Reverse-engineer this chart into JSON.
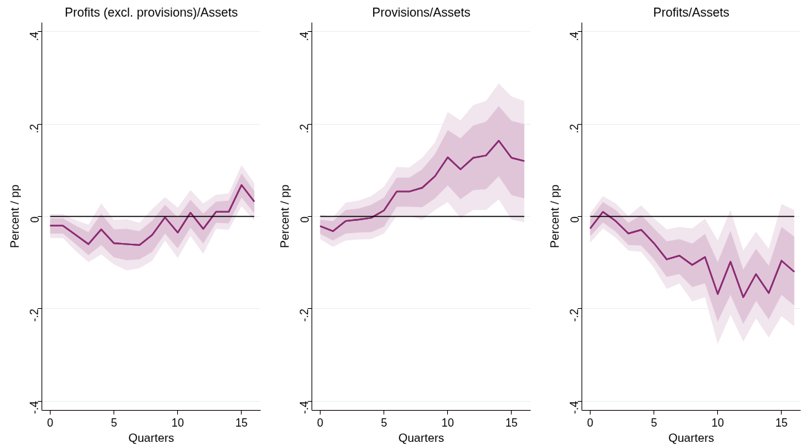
{
  "chart_data": [
    {
      "type": "line",
      "title": "Profits (excl. provisions)/Assets",
      "xlabel": "Quarters",
      "ylabel": "Percent / pp",
      "x": [
        0,
        1,
        2,
        3,
        4,
        5,
        6,
        7,
        8,
        9,
        10,
        11,
        12,
        13,
        14,
        15,
        16
      ],
      "xlim": [
        -0.65,
        16.5
      ],
      "xticks": [
        0,
        5,
        10,
        15
      ],
      "ylim": [
        -0.42,
        0.42
      ],
      "yticks": [
        {
          "value": -0.4,
          "label": "-.4"
        },
        {
          "value": -0.2,
          "label": "-.2"
        },
        {
          "value": 0,
          "label": "0"
        },
        {
          "value": 0.2,
          "label": ".2"
        },
        {
          "value": 0.4,
          "label": ".4"
        }
      ],
      "grid": "y",
      "ref_lines": [
        {
          "axis": "y",
          "value": 0,
          "color": "#000000"
        }
      ],
      "series": [
        {
          "color": "#8b2a72",
          "values": [
            -0.02,
            -0.02,
            -0.04,
            -0.06,
            -0.028,
            -0.058,
            -0.06,
            -0.062,
            -0.04,
            -0.002,
            -0.035,
            0.008,
            -0.027,
            0.01,
            0.01,
            0.068,
            0.032
          ],
          "lower": [
            -0.047,
            -0.047,
            -0.075,
            -0.099,
            -0.082,
            -0.104,
            -0.117,
            -0.112,
            -0.096,
            -0.052,
            -0.09,
            -0.042,
            -0.081,
            -0.027,
            -0.029,
            0.022,
            -0.009
          ],
          "upper": [
            0.005,
            0.005,
            -0.008,
            -0.018,
            0.028,
            -0.008,
            -0.006,
            -0.014,
            0.016,
            0.042,
            0.019,
            0.057,
            0.028,
            0.047,
            0.05,
            0.111,
            0.072
          ]
        },
        {
          "color": "#8b2a72",
          "values": [
            -0.02,
            -0.02,
            -0.04,
            -0.06,
            -0.028,
            -0.058,
            -0.06,
            -0.062,
            -0.04,
            -0.002,
            -0.035,
            0.008,
            -0.027,
            0.01,
            0.01,
            0.068,
            0.032
          ],
          "lower": [
            -0.037,
            -0.037,
            -0.06,
            -0.084,
            -0.062,
            -0.089,
            -0.095,
            -0.093,
            -0.077,
            -0.037,
            -0.069,
            -0.024,
            -0.059,
            -0.014,
            -0.015,
            0.041,
            0.007
          ],
          "upper": [
            -0.004,
            -0.004,
            -0.02,
            -0.034,
            0.006,
            -0.028,
            -0.027,
            -0.032,
            -0.009,
            0.025,
            -0.002,
            0.036,
            0.006,
            0.032,
            0.034,
            0.093,
            0.055
          ]
        }
      ]
    },
    {
      "type": "line",
      "title": "Provisions/Assets",
      "xlabel": "Quarters",
      "ylabel": "Percent / pp",
      "x": [
        0,
        1,
        2,
        3,
        4,
        5,
        6,
        7,
        8,
        9,
        10,
        11,
        12,
        13,
        14,
        15,
        16
      ],
      "xlim": [
        -0.65,
        16.5
      ],
      "xticks": [
        0,
        5,
        10,
        15
      ],
      "ylim": [
        -0.42,
        0.42
      ],
      "yticks": [
        {
          "value": -0.4,
          "label": "-.4"
        },
        {
          "value": -0.2,
          "label": "-.2"
        },
        {
          "value": 0,
          "label": "0"
        },
        {
          "value": 0.2,
          "label": ".2"
        },
        {
          "value": 0.4,
          "label": ".4"
        }
      ],
      "grid": "y",
      "ref_lines": [
        {
          "axis": "y",
          "value": 0,
          "color": "#000000"
        }
      ],
      "series": [
        {
          "color": "#8b2a72",
          "values": [
            -0.021,
            -0.032,
            -0.01,
            -0.007,
            -0.003,
            0.013,
            0.054,
            0.054,
            0.062,
            0.087,
            0.128,
            0.102,
            0.127,
            0.132,
            0.164,
            0.127,
            0.12
          ],
          "lower": [
            -0.049,
            -0.066,
            -0.052,
            -0.05,
            -0.049,
            -0.037,
            0.001,
            0.001,
            -0.007,
            0.014,
            0.031,
            -0.003,
            0.014,
            0.014,
            0.037,
            -0.007,
            -0.012
          ],
          "upper": [
            0.004,
            -0.002,
            0.03,
            0.034,
            0.044,
            0.064,
            0.107,
            0.106,
            0.127,
            0.16,
            0.226,
            0.208,
            0.241,
            0.25,
            0.288,
            0.26,
            0.25
          ]
        },
        {
          "color": "#8b2a72",
          "values": [
            -0.021,
            -0.032,
            -0.01,
            -0.007,
            -0.003,
            0.013,
            0.054,
            0.054,
            0.062,
            0.087,
            0.128,
            0.102,
            0.127,
            0.132,
            0.164,
            0.127,
            0.12
          ],
          "lower": [
            -0.038,
            -0.052,
            -0.037,
            -0.035,
            -0.034,
            -0.022,
            0.021,
            0.021,
            0.02,
            0.039,
            0.067,
            0.037,
            0.057,
            0.059,
            0.087,
            0.046,
            0.039
          ],
          "upper": [
            -0.007,
            -0.01,
            0.014,
            0.017,
            0.025,
            0.041,
            0.084,
            0.084,
            0.102,
            0.135,
            0.187,
            0.169,
            0.197,
            0.205,
            0.239,
            0.207,
            0.2
          ]
        }
      ]
    },
    {
      "type": "line",
      "title": "Profits/Assets",
      "xlabel": "Quarters",
      "ylabel": "Percent / pp",
      "x": [
        0,
        1,
        2,
        3,
        4,
        5,
        6,
        7,
        8,
        9,
        10,
        11,
        12,
        13,
        14,
        15,
        16
      ],
      "xlim": [
        -0.65,
        16.5
      ],
      "xticks": [
        0,
        5,
        10,
        15
      ],
      "ylim": [
        -0.42,
        0.42
      ],
      "yticks": [
        {
          "value": -0.4,
          "label": "-.4"
        },
        {
          "value": -0.2,
          "label": "-.2"
        },
        {
          "value": 0,
          "label": "0"
        },
        {
          "value": 0.2,
          "label": ".2"
        },
        {
          "value": 0.4,
          "label": ".4"
        }
      ],
      "grid": "y",
      "ref_lines": [
        {
          "axis": "y",
          "value": 0,
          "color": "#000000"
        }
      ],
      "series": [
        {
          "color": "#8b2a72",
          "values": [
            -0.026,
            0.01,
            -0.01,
            -0.037,
            -0.029,
            -0.058,
            -0.093,
            -0.085,
            -0.105,
            -0.088,
            -0.168,
            -0.098,
            -0.175,
            -0.125,
            -0.166,
            -0.096,
            -0.12
          ],
          "lower": [
            -0.057,
            -0.026,
            -0.046,
            -0.074,
            -0.077,
            -0.111,
            -0.157,
            -0.145,
            -0.184,
            -0.175,
            -0.276,
            -0.213,
            -0.271,
            -0.221,
            -0.262,
            -0.216,
            -0.238
          ],
          "upper": [
            0.007,
            0.044,
            0.028,
            0.001,
            0.024,
            -0.004,
            -0.028,
            -0.023,
            -0.026,
            -0.005,
            -0.052,
            0.014,
            -0.074,
            -0.033,
            -0.07,
            0.027,
            0.014
          ]
        },
        {
          "color": "#8b2a72",
          "values": [
            -0.026,
            0.01,
            -0.01,
            -0.037,
            -0.029,
            -0.058,
            -0.093,
            -0.085,
            -0.105,
            -0.088,
            -0.168,
            -0.098,
            -0.175,
            -0.125,
            -0.166,
            -0.096,
            -0.12
          ],
          "lower": [
            -0.043,
            -0.013,
            -0.033,
            -0.062,
            -0.063,
            -0.093,
            -0.131,
            -0.125,
            -0.153,
            -0.145,
            -0.228,
            -0.17,
            -0.233,
            -0.183,
            -0.223,
            -0.17,
            -0.193
          ],
          "upper": [
            -0.006,
            0.031,
            0.014,
            -0.014,
            0.003,
            -0.026,
            -0.054,
            -0.049,
            -0.059,
            -0.038,
            -0.099,
            -0.031,
            -0.115,
            -0.07,
            -0.107,
            -0.023,
            -0.044
          ]
        }
      ]
    }
  ]
}
